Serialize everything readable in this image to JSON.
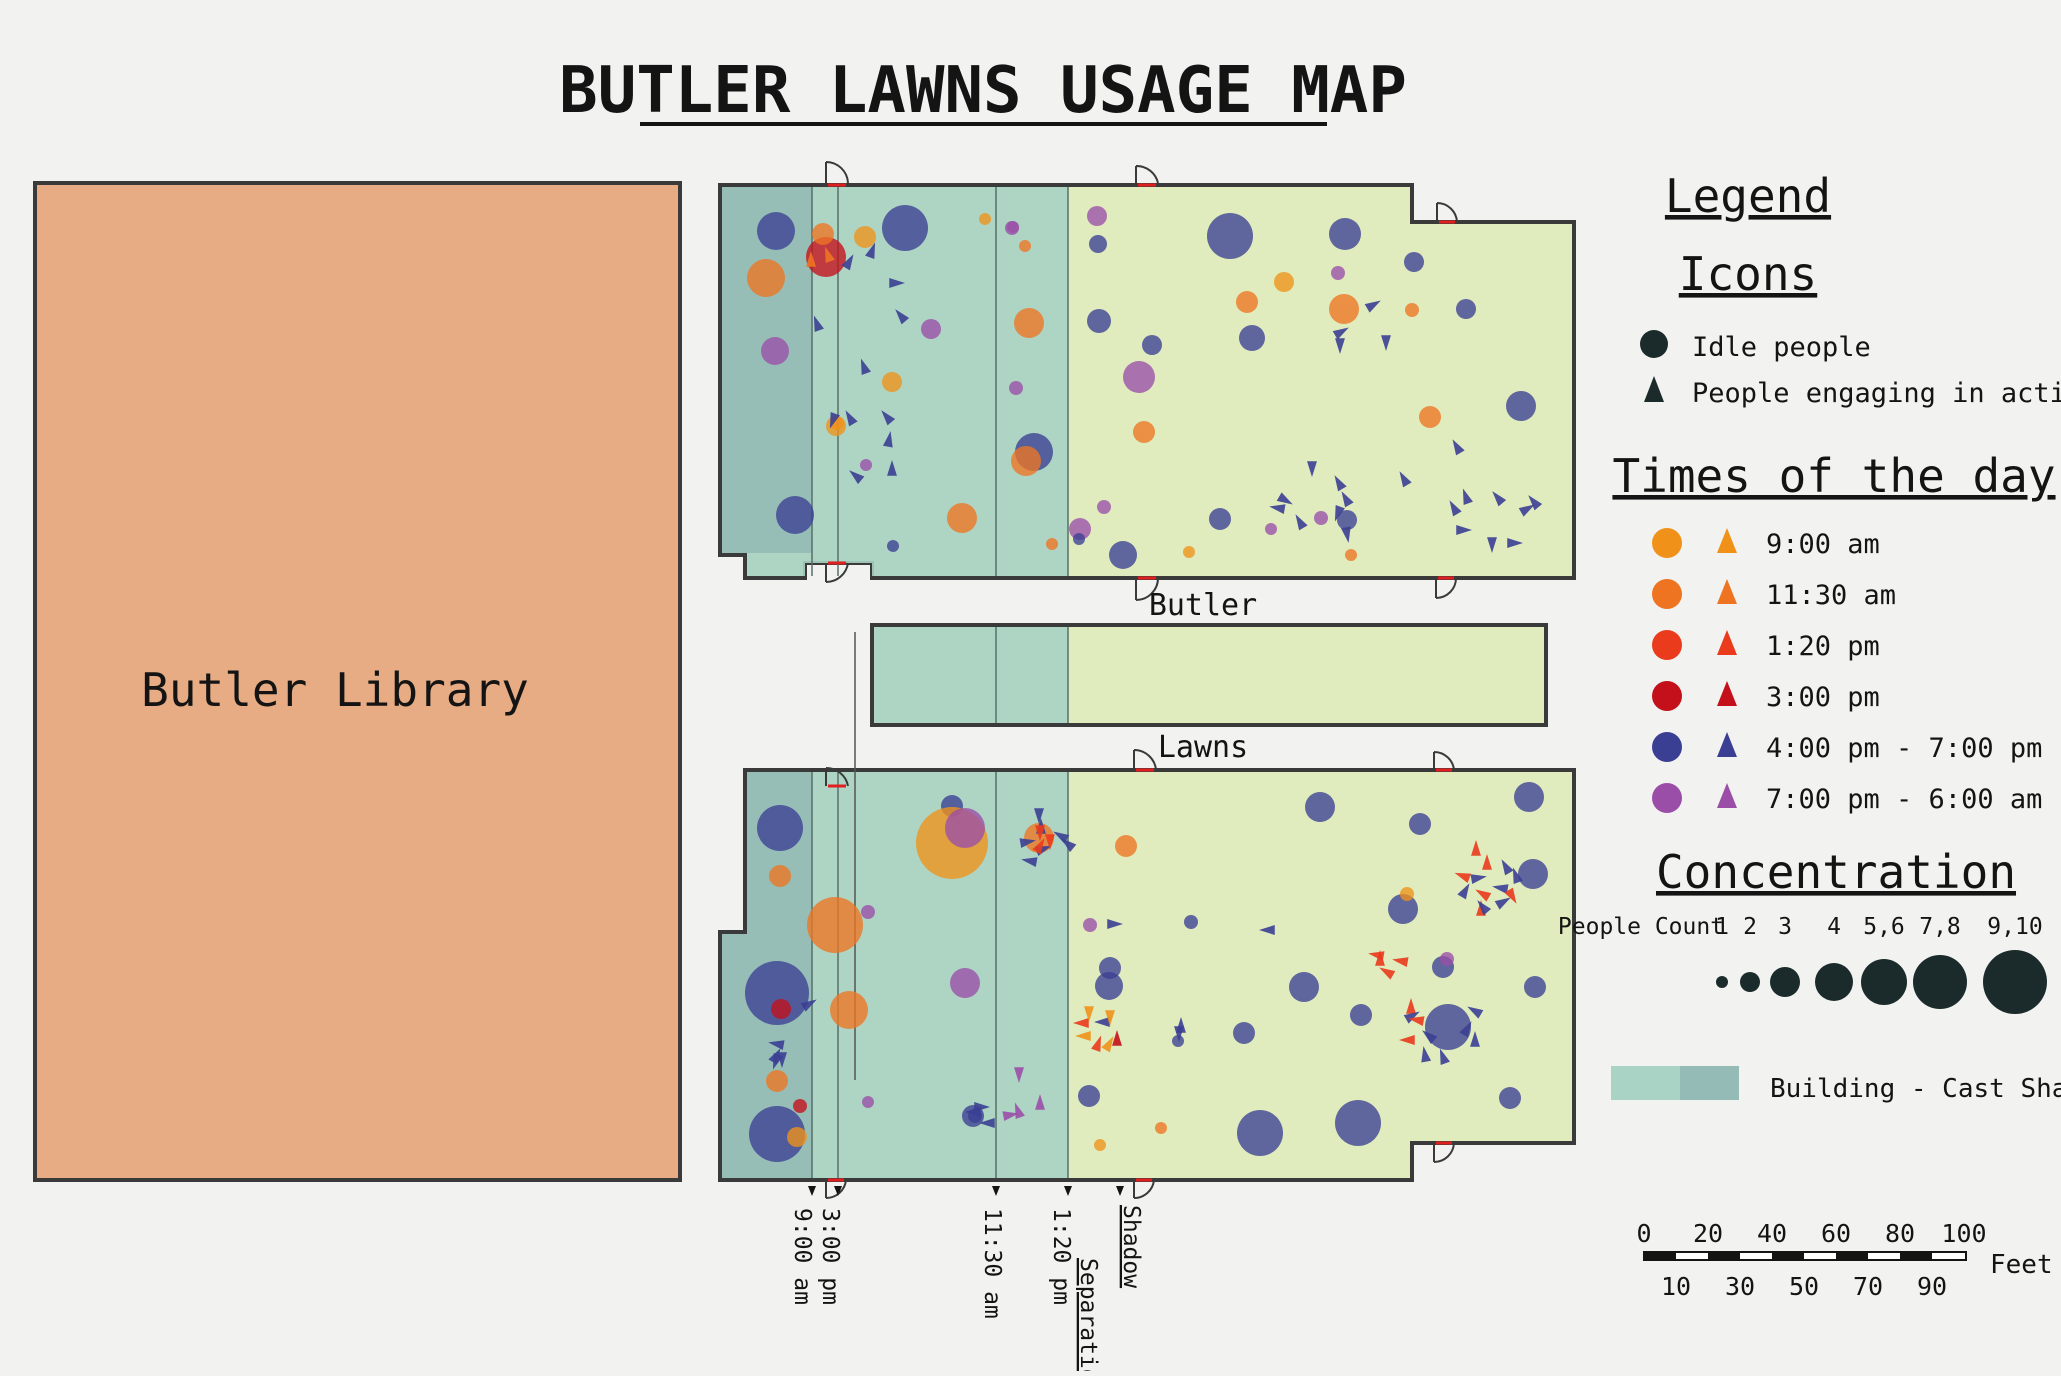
{
  "title": "BUTLER LAWNS USAGE MAP",
  "library_label": "Butler Library",
  "lawn_labels": {
    "upper": "Butler",
    "lower": "Lawns"
  },
  "shadow_lines": [
    {
      "id": "line-900",
      "label": "9:00 am"
    },
    {
      "id": "line-300",
      "label": "3:00 pm"
    },
    {
      "id": "line-1130",
      "label": "11:30 am"
    },
    {
      "id": "line-120",
      "label": "1:20 pm"
    },
    {
      "id": "line-sep",
      "label": "Separation"
    },
    {
      "id": "line-shadow",
      "label": "Shadow"
    }
  ],
  "legend": {
    "title": "Legend",
    "icons_title": "Icons",
    "icon_items": [
      {
        "shape": "circle",
        "label": "Idle people"
      },
      {
        "shape": "triangle",
        "label": "People engaging in activities"
      }
    ],
    "times_title": "Times of the day",
    "times": [
      {
        "label": "9:00 am",
        "color": "#f0921a"
      },
      {
        "label": "11:30 am",
        "color": "#ee7422"
      },
      {
        "label": "1:20 pm",
        "color": "#ea3b1c"
      },
      {
        "label": "3:00 pm",
        "color": "#c4101a"
      },
      {
        "label": "4:00 pm - 7:00 pm",
        "color": "#3b3f94"
      },
      {
        "label": "7:00 pm - 6:00 am",
        "color": "#9a4ea8"
      }
    ],
    "concentration_title": "Concentration",
    "people_count_label": "People Count",
    "counts": [
      "1",
      "2",
      "3",
      "4",
      "5,6",
      "7,8",
      "9,10"
    ],
    "shadow_swatch_label": "Building - Cast Shadow"
  },
  "scale": {
    "top_ticks": [
      "0",
      "20",
      "40",
      "60",
      "80",
      "100"
    ],
    "bottom_ticks": [
      "10",
      "30",
      "50",
      "70",
      "90"
    ],
    "unit": "Feet"
  },
  "colors": {
    "library": "#e7ac84",
    "lawn": "#e0ecbd",
    "shadow_light": "#a9d3c4",
    "shadow_dark": "#8fb5b1",
    "outline": "#3a3a3a"
  }
}
